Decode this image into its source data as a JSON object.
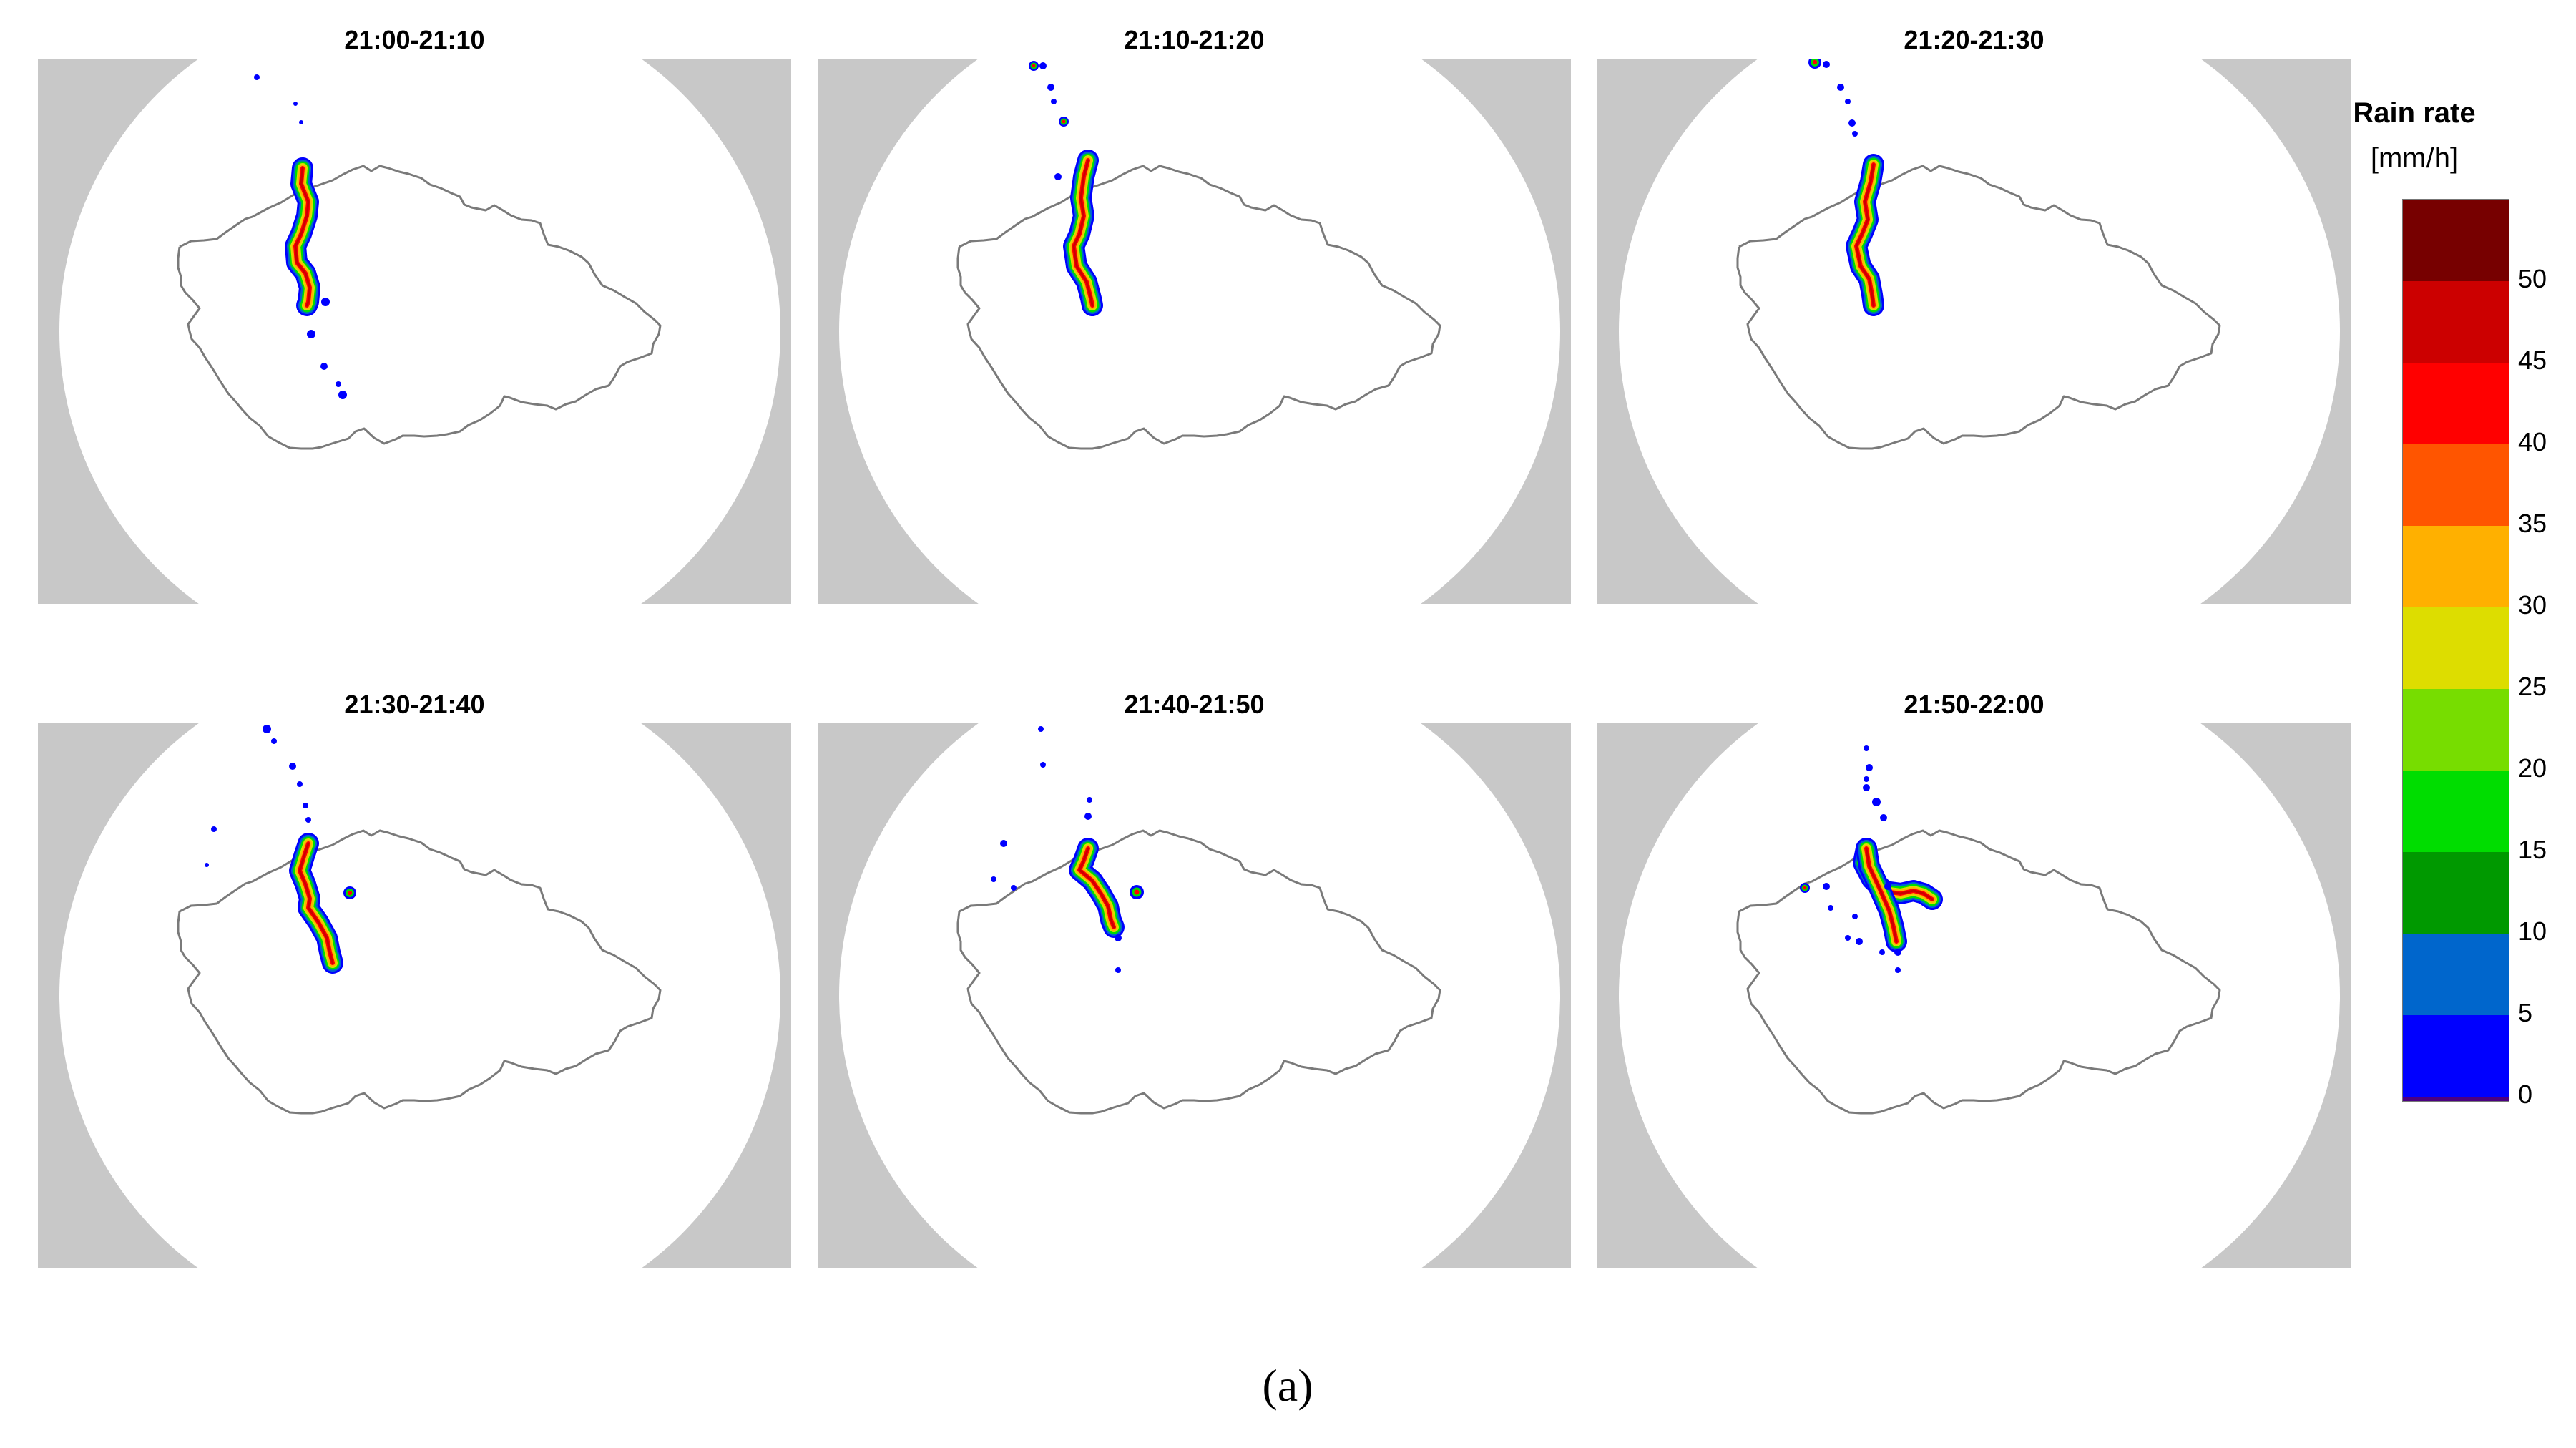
{
  "panels": [
    {
      "title": "21:00-21:10"
    },
    {
      "title": "21:10-21:20"
    },
    {
      "title": "21:20-21:30"
    },
    {
      "title": "21:30-21:40"
    },
    {
      "title": "21:40-21:50"
    },
    {
      "title": "21:50-22:00"
    }
  ],
  "legend": {
    "title": "Rain rate",
    "unit": "[mm/h]",
    "ticks": [
      "0",
      "5",
      "10",
      "15",
      "20",
      "25",
      "30",
      "35",
      "40",
      "45",
      "50"
    ],
    "colors": [
      "#4b0082",
      "#0000ff",
      "#0066cc",
      "#009900",
      "#00dd00",
      "#77dd00",
      "#dddd00",
      "#ffb000",
      "#ff5500",
      "#ff0000",
      "#cc0000",
      "#770000"
    ]
  },
  "figure_label": "(a)"
}
